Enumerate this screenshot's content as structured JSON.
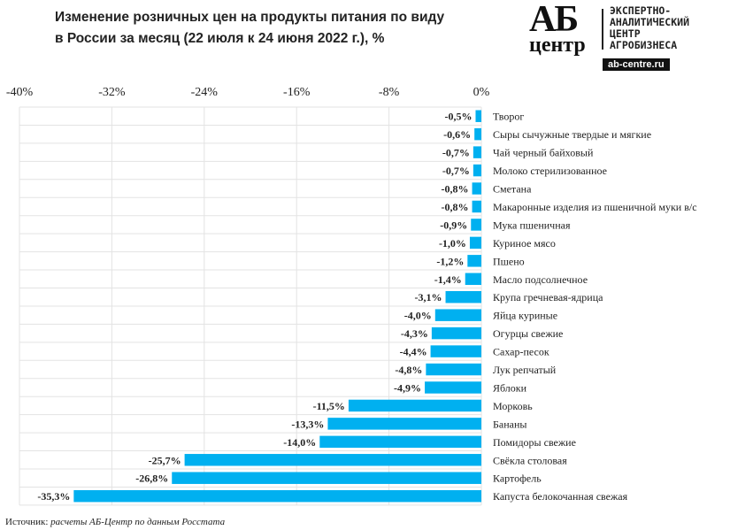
{
  "header": {
    "title_line1": "Изменение розничных цен на продукты питания по виду",
    "title_line2": "в России за месяц (22 июля к 24 июня 2022 г.), %"
  },
  "logo": {
    "big": "АБ",
    "small": "центр",
    "lines": [
      "ЭКСПЕРТНО-",
      "АНАЛИТИЧЕСКИЙ",
      "ЦЕНТР",
      "АГРОБИЗНЕСА"
    ],
    "url": "ab-centre.ru"
  },
  "source": {
    "label": "Источник:",
    "text": "расчеты АБ-Центр по данным Росстата"
  },
  "chart_data": {
    "type": "bar",
    "orientation": "horizontal",
    "title": "Изменение розничных цен на продукты питания по виду в России за месяц (22 июля к 24 июня 2022 г.), %",
    "xlim": [
      -40,
      0
    ],
    "xticks": [
      -40,
      -32,
      -24,
      -16,
      -8,
      0
    ],
    "tick_labels": [
      "-40%",
      "-32%",
      "-24%",
      "-16%",
      "-8%",
      "0%"
    ],
    "bar_color": "#00b0f0",
    "categories": [
      "Творог",
      "Сыры сычужные твердые и мягкие",
      "Чай черный байховый",
      "Молоко стерилизованное",
      "Сметана",
      "Макаронные изделия из пшеничной муки в/с",
      "Мука пшеничная",
      "Куриное мясо",
      "Пшено",
      "Масло подсолнечное",
      "Крупа гречневая-ядрица",
      "Яйца куриные",
      "Огурцы свежие",
      "Сахар-песок",
      "Лук репчатый",
      "Яблоки",
      "Морковь",
      "Бананы",
      "Помидоры свежие",
      "Свёкла столовая",
      "Картофель",
      "Капуста белокочанная свежая"
    ],
    "values": [
      -0.5,
      -0.6,
      -0.7,
      -0.7,
      -0.8,
      -0.8,
      -0.9,
      -1.0,
      -1.2,
      -1.4,
      -3.1,
      -4.0,
      -4.3,
      -4.4,
      -4.8,
      -4.9,
      -11.5,
      -13.3,
      -14.0,
      -25.7,
      -26.8,
      -35.3
    ],
    "value_labels": [
      "-0,5%",
      "-0,6%",
      "-0,7%",
      "-0,7%",
      "-0,8%",
      "-0,8%",
      "-0,9%",
      "-1,0%",
      "-1,2%",
      "-1,4%",
      "-3,1%",
      "-4,0%",
      "-4,3%",
      "-4,4%",
      "-4,8%",
      "-4,9%",
      "-11,5%",
      "-13,3%",
      "-14,0%",
      "-25,7%",
      "-26,8%",
      "-35,3%"
    ]
  }
}
